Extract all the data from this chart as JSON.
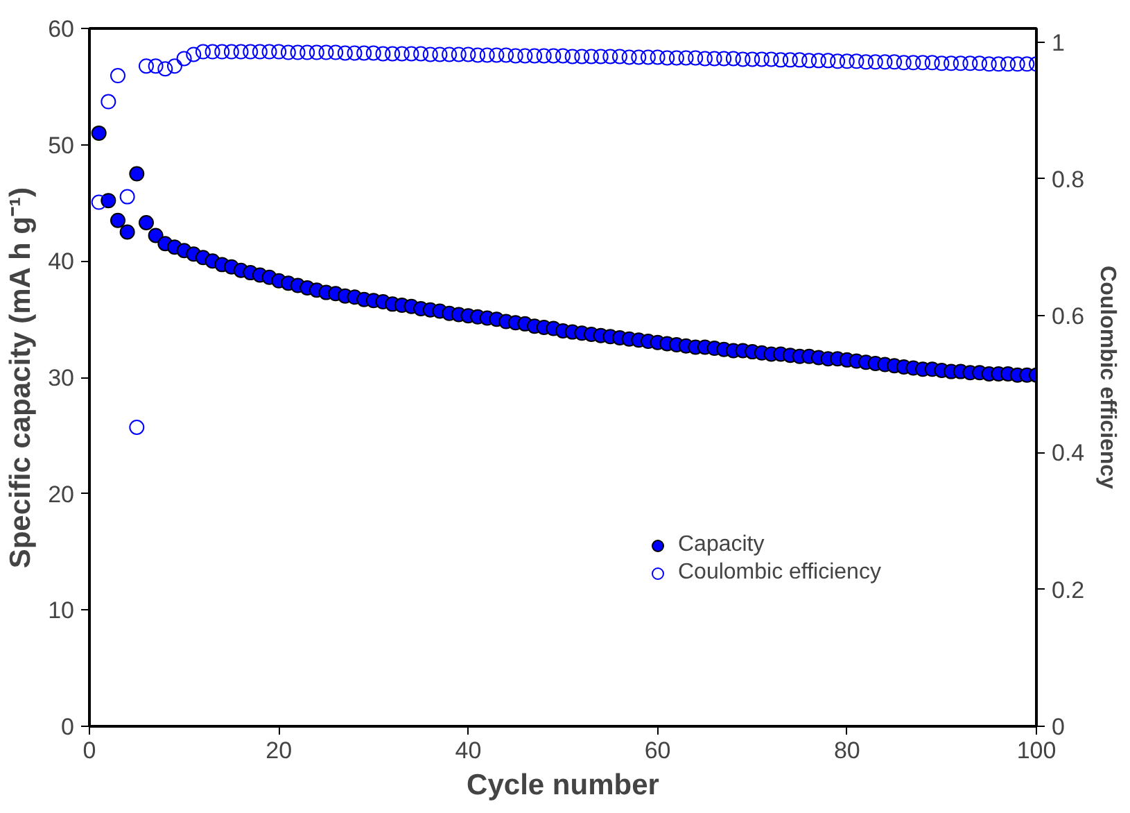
{
  "chart_data": {
    "type": "scatter",
    "xlabel": "Cycle number",
    "ylabel": "Specific capacity (mA h g⁻¹)",
    "y2label": "Coulombic efficiency",
    "x": [
      1,
      2,
      3,
      4,
      5,
      6,
      7,
      8,
      9,
      10,
      11,
      12,
      13,
      14,
      15,
      16,
      17,
      18,
      19,
      20,
      21,
      22,
      23,
      24,
      25,
      26,
      27,
      28,
      29,
      30,
      31,
      32,
      33,
      34,
      35,
      36,
      37,
      38,
      39,
      40,
      41,
      42,
      43,
      44,
      45,
      46,
      47,
      48,
      49,
      50,
      51,
      52,
      53,
      54,
      55,
      56,
      57,
      58,
      59,
      60,
      61,
      62,
      63,
      64,
      65,
      66,
      67,
      68,
      69,
      70,
      71,
      72,
      73,
      74,
      75,
      76,
      77,
      78,
      79,
      80,
      81,
      82,
      83,
      84,
      85,
      86,
      87,
      88,
      89,
      90,
      91,
      92,
      93,
      94,
      95,
      96,
      97,
      98,
      99,
      100
    ],
    "series": [
      {
        "name": "Capacity",
        "color": "#0000ff",
        "values": [
          51.0,
          45.2,
          43.5,
          42.5,
          47.5,
          43.3,
          42.2,
          41.5,
          41.2,
          40.9,
          40.6,
          40.3,
          40.0,
          39.7,
          39.5,
          39.2,
          39.0,
          38.8,
          38.6,
          38.3,
          38.1,
          37.9,
          37.7,
          37.5,
          37.3,
          37.2,
          37.0,
          36.9,
          36.7,
          36.6,
          36.5,
          36.3,
          36.2,
          36.1,
          35.9,
          35.8,
          35.7,
          35.5,
          35.4,
          35.3,
          35.2,
          35.1,
          35.0,
          34.8,
          34.7,
          34.6,
          34.4,
          34.3,
          34.2,
          34.0,
          33.9,
          33.8,
          33.7,
          33.6,
          33.5,
          33.4,
          33.3,
          33.2,
          33.1,
          33.0,
          32.9,
          32.8,
          32.7,
          32.6,
          32.6,
          32.5,
          32.4,
          32.3,
          32.3,
          32.2,
          32.1,
          32.0,
          32.0,
          31.9,
          31.8,
          31.8,
          31.7,
          31.6,
          31.6,
          31.5,
          31.4,
          31.3,
          31.2,
          31.1,
          31.0,
          30.9,
          30.8,
          30.7,
          30.7,
          30.6,
          30.5,
          30.5,
          30.4,
          30.4,
          30.3,
          30.3,
          30.3,
          30.2,
          30.2,
          30.2
        ]
      },
      {
        "name": "Coulombic efficiency",
        "color": "#0000ff",
        "axis": "y2",
        "values": [
          0.766,
          0.913,
          0.951,
          0.774,
          0.437,
          0.965,
          0.965,
          0.961,
          0.965,
          0.976,
          0.982,
          0.986,
          0.986,
          0.986,
          0.986,
          0.986,
          0.986,
          0.986,
          0.986,
          0.986,
          0.985,
          0.985,
          0.985,
          0.985,
          0.985,
          0.985,
          0.984,
          0.984,
          0.984,
          0.984,
          0.983,
          0.983,
          0.983,
          0.983,
          0.983,
          0.982,
          0.982,
          0.982,
          0.982,
          0.982,
          0.981,
          0.981,
          0.981,
          0.981,
          0.98,
          0.98,
          0.98,
          0.98,
          0.98,
          0.98,
          0.979,
          0.979,
          0.979,
          0.979,
          0.979,
          0.979,
          0.978,
          0.978,
          0.978,
          0.978,
          0.977,
          0.977,
          0.977,
          0.977,
          0.976,
          0.976,
          0.976,
          0.976,
          0.975,
          0.975,
          0.975,
          0.975,
          0.974,
          0.974,
          0.974,
          0.973,
          0.973,
          0.973,
          0.972,
          0.972,
          0.972,
          0.971,
          0.971,
          0.971,
          0.971,
          0.97,
          0.97,
          0.97,
          0.97,
          0.969,
          0.969,
          0.969,
          0.969,
          0.969,
          0.968,
          0.968,
          0.968,
          0.968,
          0.968,
          0.968
        ]
      }
    ],
    "xlim": [
      0,
      100
    ],
    "xticks": [
      0,
      20,
      40,
      60,
      80,
      100
    ],
    "ylim": [
      0,
      60
    ],
    "yticks": [
      0,
      10,
      20,
      30,
      40,
      50,
      60
    ],
    "y2lim": [
      0,
      1.02
    ],
    "y2ticks": [
      0,
      0.2,
      0.4,
      0.6,
      0.8,
      1
    ],
    "marker": "circle",
    "grid": false,
    "legend": "right"
  }
}
